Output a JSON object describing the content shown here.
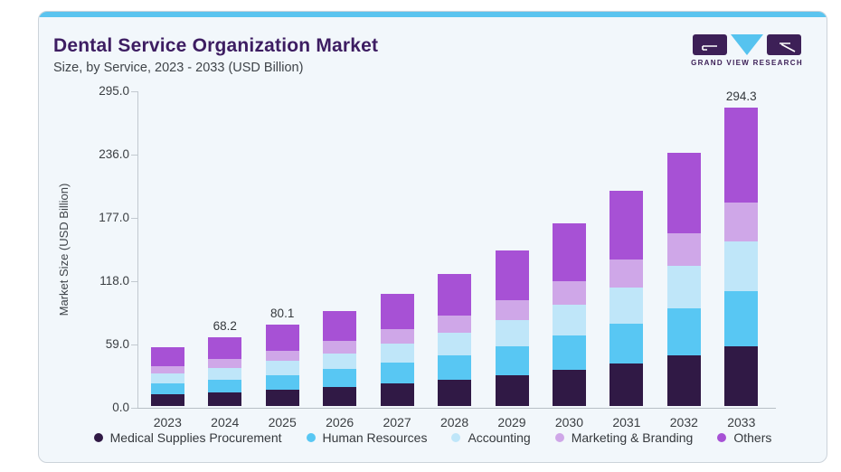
{
  "theme": {
    "accent_strip": "#5bc4ef",
    "card_bg": "#f2f7fb",
    "card_border": "#ccd3da",
    "title_color": "#3d1d62",
    "text_color": "#3f4449",
    "axis_color": "#c2c9d0",
    "logo_purple": "#3d2057",
    "logo_blue": "#56c3ef"
  },
  "header": {
    "title": "Dental Service Organization Market",
    "subtitle": "Size, by Service, 2023 - 2033 (USD Billion)",
    "logo_text": "GRAND VIEW RESEARCH"
  },
  "chart_data": {
    "type": "bar",
    "stacked": true,
    "title": "Dental Service Organization Market",
    "subtitle": "Size, by Service, 2023 - 2033 (USD Billion)",
    "categories": [
      "2023",
      "2024",
      "2025",
      "2026",
      "2027",
      "2028",
      "2029",
      "2030",
      "2031",
      "2032",
      "2033"
    ],
    "series": [
      {
        "name": "Medical Supplies Procurement",
        "color": "#301945",
        "values": [
          11.6,
          13.6,
          16.0,
          18.8,
          22.2,
          26.1,
          30.7,
          36.1,
          42.4,
          49.9,
          58.9
        ]
      },
      {
        "name": "Human Resources",
        "color": "#58c7f3",
        "values": [
          10.7,
          12.6,
          14.8,
          17.4,
          20.5,
          24.1,
          28.4,
          33.4,
          39.3,
          46.2,
          54.4
        ]
      },
      {
        "name": "Accounting",
        "color": "#bfe6f9",
        "values": [
          9.8,
          11.5,
          13.5,
          15.8,
          18.6,
          21.9,
          25.8,
          30.3,
          35.6,
          41.9,
          49.4
        ]
      },
      {
        "name": "Marketing & Branding",
        "color": "#cfa7e8",
        "values": [
          7.6,
          8.9,
          10.4,
          12.2,
          14.4,
          17.0,
          19.9,
          23.5,
          27.6,
          32.5,
          38.3
        ]
      },
      {
        "name": "Others",
        "color": "#a751d5",
        "values": [
          18.4,
          21.6,
          25.4,
          30.0,
          35.2,
          41.3,
          48.6,
          57.1,
          67.3,
          79.2,
          93.3
        ]
      }
    ],
    "totals": [
      58.1,
      68.2,
      80.1,
      94.2,
      110.9,
      130.4,
      153.4,
      180.4,
      212.2,
      249.7,
      294.3
    ],
    "bar_labels": [
      "",
      "68.2",
      "80.1",
      "",
      "",
      "",
      "",
      "",
      "",
      "",
      "294.3"
    ],
    "xlabel": "",
    "ylabel": "Market Size (USD Billion)",
    "yticks": [
      {
        "label": "295.0",
        "value": 295
      },
      {
        "label": "236.0",
        "value": 236
      },
      {
        "label": "177.0",
        "value": 177
      },
      {
        "label": "118.0",
        "value": 118
      },
      {
        "label": "59.0",
        "value": 59
      },
      {
        "label": "0.0",
        "value": 0
      }
    ],
    "ylim": [
      0,
      295
    ],
    "legend_position": "bottom",
    "grid": false
  }
}
